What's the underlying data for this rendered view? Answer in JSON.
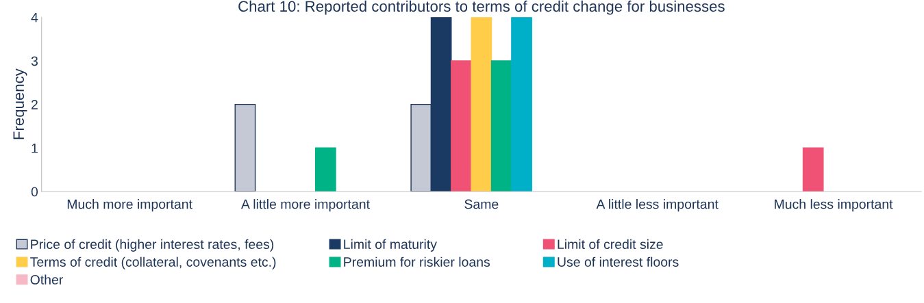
{
  "chart_data": {
    "type": "bar",
    "title": "Chart 10: Reported contributors to terms of credit change for businesses",
    "ylabel": "Frequency",
    "categories": [
      "Much more important",
      "A little more important",
      "Same",
      "A little less important",
      "Much less important"
    ],
    "series": [
      {
        "name": "Price of credit (higher interest rates, fees)",
        "color": "#c5c9d6",
        "values": [
          0,
          2,
          2,
          0,
          0
        ]
      },
      {
        "name": "Limit of maturity",
        "color": "#1a3a63",
        "values": [
          0,
          0,
          4,
          0,
          0
        ]
      },
      {
        "name": "Limit of credit size",
        "color": "#ef5274",
        "values": [
          0,
          0,
          3,
          0,
          1
        ]
      },
      {
        "name": "Terms of credit (collateral, covenants etc.)",
        "color": "#ffcd4a",
        "values": [
          0,
          0,
          4,
          0,
          0
        ]
      },
      {
        "name": "Premium for riskier loans",
        "color": "#00b386",
        "values": [
          0,
          1,
          3,
          0,
          0
        ]
      },
      {
        "name": "Use of interest floors",
        "color": "#00b0c8",
        "values": [
          0,
          0,
          4,
          0,
          0
        ]
      },
      {
        "name": "Other",
        "color": "#f7b8c6",
        "values": [
          0,
          0,
          0,
          0,
          0
        ]
      }
    ],
    "ylim": [
      0,
      4
    ],
    "yticks": [
      0,
      1,
      2,
      3,
      4
    ],
    "grid": false,
    "legend": "bottom"
  }
}
